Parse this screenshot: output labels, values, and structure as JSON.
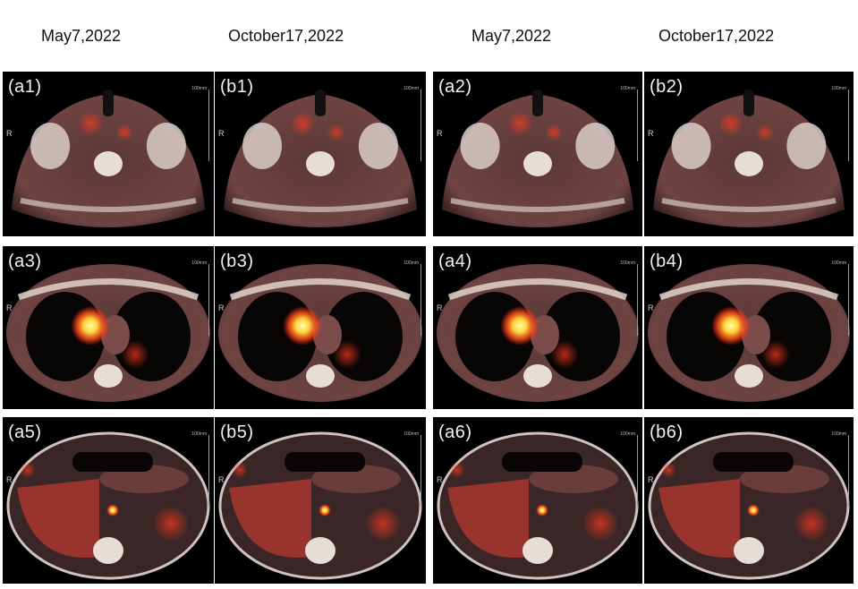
{
  "dates": {
    "left_a": "May7,2022",
    "left_b": "October17,2022",
    "right_a": "May7,2022",
    "right_b": "October17,2022"
  },
  "panels": [
    {
      "label": "(a1)",
      "kind": "neck"
    },
    {
      "label": "(b1)",
      "kind": "neck"
    },
    {
      "label": "(a2)",
      "kind": "neck"
    },
    {
      "label": "(b2)",
      "kind": "neck"
    },
    {
      "label": "(a3)",
      "kind": "chest"
    },
    {
      "label": "(b3)",
      "kind": "chest"
    },
    {
      "label": "(a4)",
      "kind": "chest"
    },
    {
      "label": "(b4)",
      "kind": "chest"
    },
    {
      "label": "(a5)",
      "kind": "abdomen"
    },
    {
      "label": "(b5)",
      "kind": "abdomen"
    },
    {
      "label": "(a6)",
      "kind": "abdomen"
    },
    {
      "label": "(b6)",
      "kind": "abdomen"
    }
  ],
  "orientation_mark": "R",
  "scale_label": "100mm",
  "colors": {
    "uptake_hot": "#fff36a",
    "uptake_mid": "#ff5a1e",
    "tissue": "#7a4a48",
    "bone": "#e6d7d3"
  }
}
